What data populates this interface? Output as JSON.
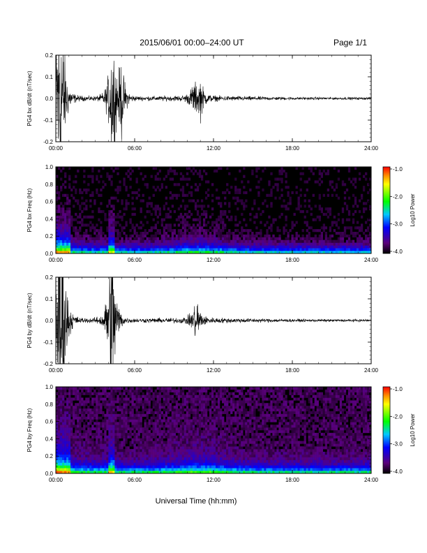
{
  "header": {
    "title": "2015/06/01  00:00–24:00 UT",
    "page": "Page 1/1"
  },
  "chart_data": [
    {
      "type": "line",
      "ylabel": "PG4 bx dB/dt (nT/sec)",
      "xlim": [
        0,
        24
      ],
      "ylim": [
        -0.2,
        0.2
      ],
      "xticks": [
        "00:00",
        "06:00",
        "12:00",
        "18:00",
        "24:00"
      ],
      "yticks": [
        "0.2",
        "0.1",
        "0.0",
        "-0.1",
        "-0.2"
      ],
      "events": [
        {
          "t": 0.3,
          "amp": 0.5
        },
        {
          "t": 4.3,
          "amp": 0.2
        },
        {
          "t": 5.0,
          "amp": 0.1
        },
        {
          "t": 10.5,
          "amp": 0.04
        },
        {
          "t": 11.0,
          "amp": 0.05
        }
      ]
    },
    {
      "type": "heatmap",
      "ylabel": "PG4 bx Freq (Hz)",
      "xlim": [
        0,
        24
      ],
      "ylim": [
        0,
        1
      ],
      "xticks": [
        "00:00",
        "06:00",
        "12:00",
        "18:00",
        "24:00"
      ],
      "yticks": [
        "1.0",
        "0.8",
        "0.6",
        "0.4",
        "0.2",
        "0.0"
      ],
      "colorbar": {
        "label": "Log10 Power",
        "ticks": [
          "-1.0",
          "-2.0",
          "-3.0",
          "-4.0"
        ],
        "range": [
          -4,
          -1
        ]
      }
    },
    {
      "type": "line",
      "ylabel": "PG4 by dB/dt (nT/sec)",
      "xlim": [
        0,
        24
      ],
      "ylim": [
        -0.2,
        0.2
      ],
      "xticks": [
        "00:00",
        "06:00",
        "12:00",
        "18:00",
        "24:00"
      ],
      "yticks": [
        "0.2",
        "0.1",
        "0.0",
        "-0.1",
        "-0.2"
      ],
      "events": [
        {
          "t": 0.4,
          "amp": 0.5
        },
        {
          "t": 4.2,
          "amp": 0.12
        },
        {
          "t": 4.3,
          "amp": 0.18
        },
        {
          "t": 10.7,
          "amp": 0.07
        }
      ]
    },
    {
      "type": "heatmap",
      "ylabel": "PG4 by Freq (Hz)",
      "xlim": [
        0,
        24
      ],
      "ylim": [
        0,
        1
      ],
      "xticks": [
        "00:00",
        "06:00",
        "12:00",
        "18:00",
        "24:00"
      ],
      "yticks": [
        "1.0",
        "0.8",
        "0.6",
        "0.4",
        "0.2",
        "0.0"
      ],
      "colorbar": {
        "label": "Log10 Power",
        "ticks": [
          "-1.0",
          "-2.0",
          "-3.0",
          "-4.0"
        ],
        "range": [
          -4,
          -1
        ]
      }
    }
  ],
  "xlabel": "Universal Time (hh:mm)"
}
